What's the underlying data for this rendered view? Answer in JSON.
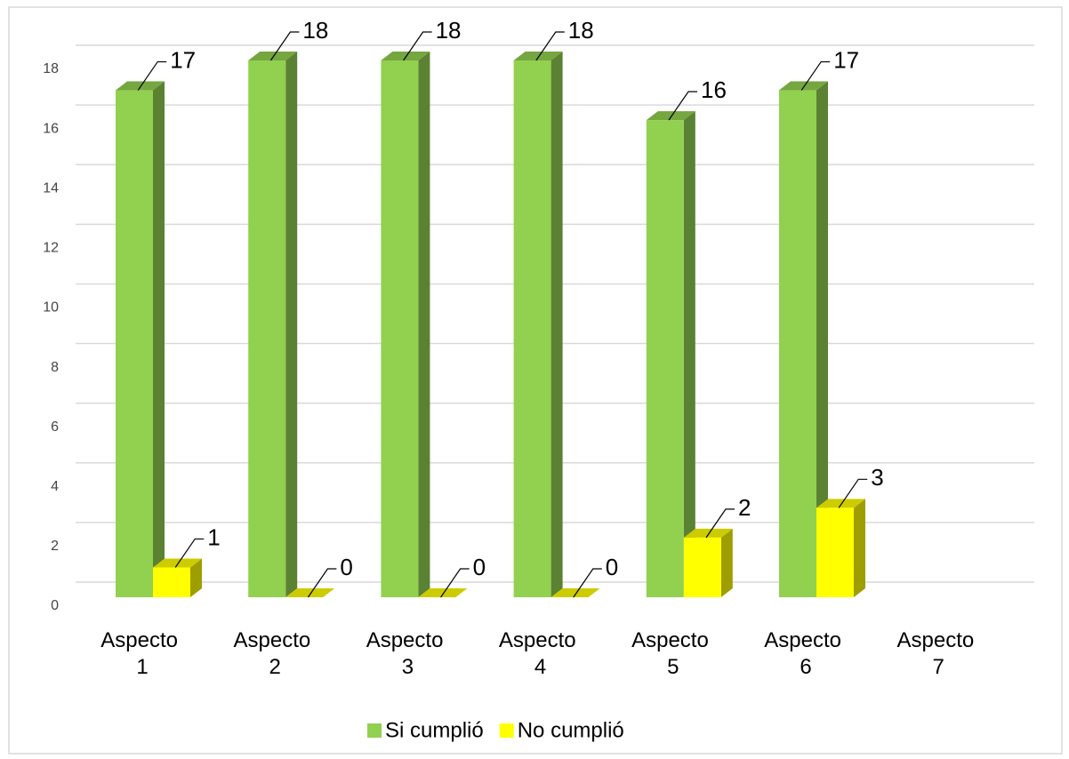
{
  "chart_data": {
    "type": "bar3d",
    "categories": [
      "Aspecto 1",
      "Aspecto 2",
      "Aspecto 3",
      "Aspecto 4",
      "Aspecto 5",
      "Aspecto 6",
      "Aspecto 7"
    ],
    "series": [
      {
        "name": "Si cumplió",
        "color": "#92d050",
        "values": [
          17,
          18,
          18,
          18,
          16,
          17,
          null
        ]
      },
      {
        "name": "No cumplió",
        "color": "#ffff00",
        "values": [
          1,
          0,
          0,
          0,
          2,
          3,
          null
        ]
      }
    ],
    "ylim": [
      0,
      18
    ],
    "yticks": [
      0,
      2,
      4,
      6,
      8,
      10,
      12,
      14,
      16,
      18
    ],
    "grid": true,
    "legend": "bottom"
  }
}
